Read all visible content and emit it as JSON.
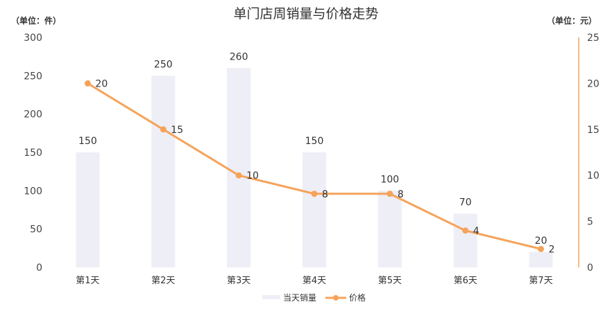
{
  "chart_data": {
    "type": "bar+line",
    "title": "单门店周销量与价格走势",
    "left_axis": {
      "unit": "（单位：件）",
      "ylim": [
        0,
        300
      ],
      "ticks": [
        "0",
        "50",
        "100",
        "150",
        "200",
        "250",
        "300"
      ]
    },
    "right_axis": {
      "unit": "（单位：元）",
      "ylim": [
        0,
        25
      ],
      "ticks": [
        "0",
        "5",
        "10",
        "15",
        "20",
        "25"
      ]
    },
    "categories": [
      "第1天",
      "第2天",
      "第3天",
      "第4天",
      "第5天",
      "第6天",
      "第7天"
    ],
    "series": [
      {
        "name": "当天销量",
        "type": "bar",
        "axis": "left",
        "values": [
          150,
          250,
          260,
          150,
          100,
          70,
          20
        ],
        "labels": [
          "150",
          "250",
          "260",
          "150",
          "100",
          "70",
          "20"
        ],
        "color": "#eeeef6"
      },
      {
        "name": "价格",
        "type": "line",
        "axis": "right",
        "values": [
          20,
          15,
          10,
          8,
          8,
          4,
          2
        ],
        "labels": [
          "20",
          "15",
          "10",
          "8",
          "8",
          "4",
          "2"
        ],
        "color": "#f5a35a"
      }
    ],
    "legend": {
      "position": "bottom",
      "items": [
        "当天销量",
        "价格"
      ]
    },
    "grid": false
  }
}
